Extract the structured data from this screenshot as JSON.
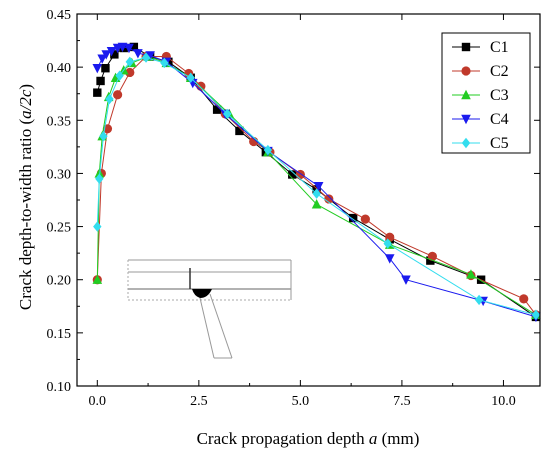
{
  "chart_data": {
    "type": "line",
    "title": "",
    "xlabel": "Crack propagation depth a (mm)",
    "xlabel_main": "Crack propagation depth ",
    "xlabel_var": "a",
    "xlabel_unit": " (mm)",
    "ylabel": "Crack depth-to-width ratio (a/2c)",
    "ylabel_main": "Crack depth-to-width ratio (",
    "ylabel_var": "a/2c",
    "ylabel_close": ")",
    "xlim": [
      -0.5,
      10.9
    ],
    "ylim": [
      0.1,
      0.45
    ],
    "xticks": [
      "0.0",
      "2.5",
      "5.0",
      "7.5",
      "10.0"
    ],
    "yticks": [
      "0.10",
      "0.15",
      "0.20",
      "0.25",
      "0.30",
      "0.35",
      "0.40",
      "0.45"
    ],
    "legend_position": "top-right",
    "grid": false,
    "series": [
      {
        "name": "C1",
        "color": "#000000",
        "marker": "square",
        "x": [
          0.0,
          0.08,
          0.2,
          0.42,
          0.65,
          0.9,
          1.3,
          1.75,
          2.3,
          2.95,
          3.5,
          4.15,
          4.8,
          5.4,
          6.3,
          7.2,
          8.2,
          9.45,
          10.8
        ],
        "y": [
          0.376,
          0.387,
          0.399,
          0.412,
          0.418,
          0.419,
          0.41,
          0.405,
          0.39,
          0.36,
          0.34,
          0.32,
          0.299,
          0.285,
          0.258,
          0.238,
          0.218,
          0.2,
          0.165
        ]
      },
      {
        "name": "C2",
        "color": "#c0392b",
        "marker": "circle",
        "x": [
          0.0,
          0.1,
          0.25,
          0.5,
          0.8,
          1.2,
          1.7,
          2.25,
          2.55,
          3.15,
          3.85,
          4.25,
          5.0,
          5.7,
          6.6,
          7.2,
          8.25,
          9.2,
          10.5,
          10.8
        ],
        "y": [
          0.2,
          0.3,
          0.342,
          0.374,
          0.395,
          0.41,
          0.41,
          0.394,
          0.382,
          0.356,
          0.33,
          0.32,
          0.299,
          0.276,
          0.257,
          0.24,
          0.222,
          0.204,
          0.182,
          0.167
        ]
      },
      {
        "name": "C3",
        "color": "#22cc22",
        "marker": "triangle-up",
        "x": [
          0.0,
          0.05,
          0.12,
          0.28,
          0.45,
          0.65,
          0.85,
          1.25,
          1.7,
          2.3,
          3.25,
          4.2,
          5.4,
          7.2,
          9.2,
          10.8
        ],
        "y": [
          0.2,
          0.3,
          0.335,
          0.372,
          0.39,
          0.397,
          0.404,
          0.41,
          0.404,
          0.39,
          0.356,
          0.32,
          0.271,
          0.233,
          0.205,
          0.167
        ]
      },
      {
        "name": "C4",
        "color": "#1a1aee",
        "marker": "triangle-down",
        "x": [
          0.0,
          0.12,
          0.22,
          0.35,
          0.5,
          0.62,
          0.78,
          1.0,
          1.3,
          1.7,
          2.35,
          3.15,
          4.2,
          5.45,
          7.2,
          7.6,
          9.5,
          10.8
        ],
        "y": [
          0.399,
          0.408,
          0.412,
          0.415,
          0.418,
          0.419,
          0.418,
          0.413,
          0.411,
          0.405,
          0.385,
          0.356,
          0.321,
          0.288,
          0.22,
          0.2,
          0.18,
          0.165
        ]
      },
      {
        "name": "C5",
        "color": "#33ddee",
        "marker": "diamond",
        "x": [
          0.0,
          0.05,
          0.15,
          0.3,
          0.55,
          0.8,
          1.2,
          1.65,
          2.3,
          3.2,
          4.2,
          5.4,
          7.15,
          9.4,
          10.8
        ],
        "y": [
          0.25,
          0.295,
          0.335,
          0.37,
          0.392,
          0.405,
          0.409,
          0.404,
          0.39,
          0.356,
          0.322,
          0.281,
          0.234,
          0.181,
          0.167
        ]
      }
    ]
  }
}
